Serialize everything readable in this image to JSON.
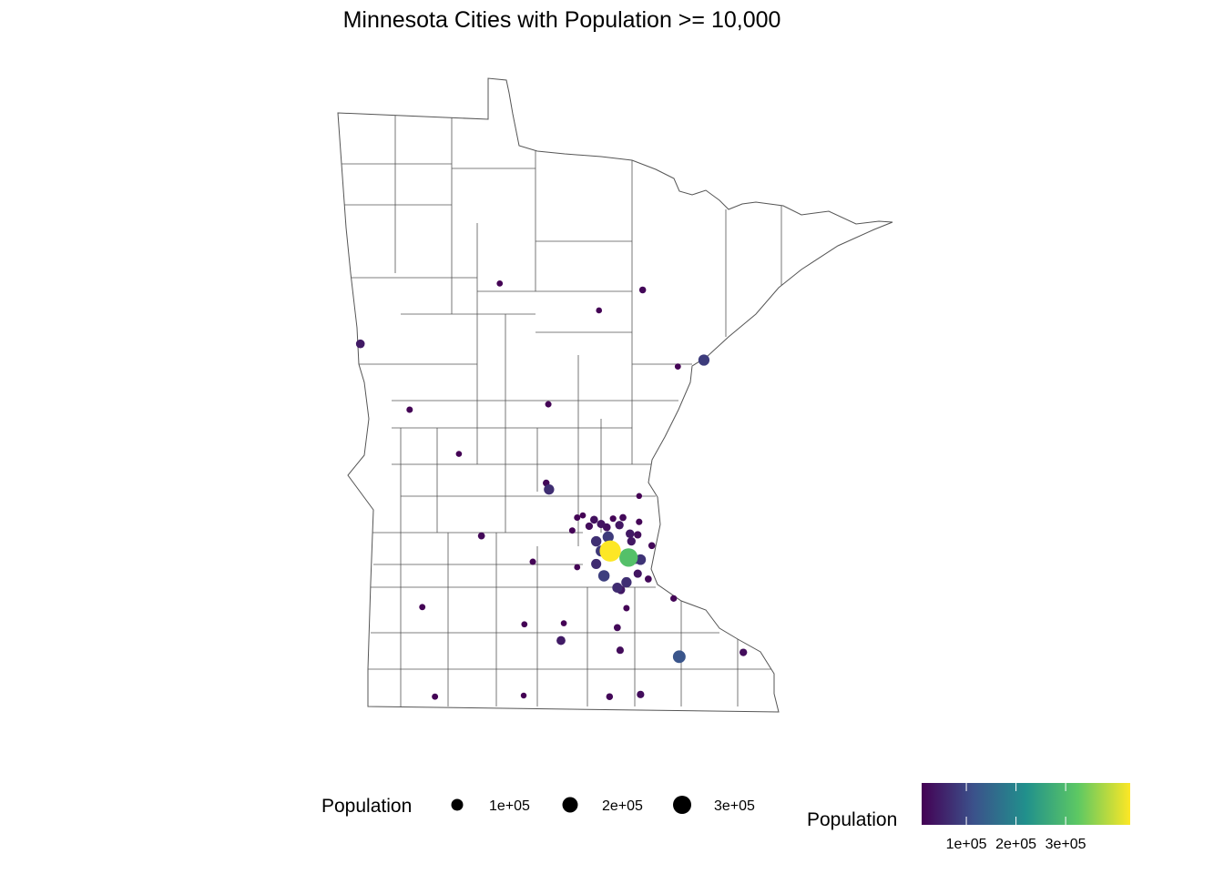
{
  "title": "Minnesota Cities with Population >= 10,000",
  "chart_data": {
    "type": "scatter",
    "subtype": "bubble map",
    "title": "Minnesota Cities with Population >= 10,000",
    "region": "Minnesota counties",
    "x": "longitude",
    "y": "latitude",
    "color_scale": {
      "name": "viridis",
      "title": "Population",
      "domain": [
        10000,
        430000
      ],
      "ticks": [
        100000,
        200000,
        300000
      ],
      "tick_labels": [
        "1e+05",
        "2e+05",
        "3e+05"
      ],
      "stops": [
        "#440154",
        "#3b528b",
        "#21908c",
        "#5dc863",
        "#fde725"
      ]
    },
    "size_legend": {
      "title": "Population",
      "values": [
        100000,
        200000,
        300000
      ],
      "labels": [
        "1e+05",
        "2e+05",
        "3e+05"
      ]
    },
    "points": [
      {
        "lon": -95.07,
        "lat": 47.47,
        "pop": 12000
      },
      {
        "lon": -93.04,
        "lat": 47.41,
        "pop": 18000
      },
      {
        "lon": -93.66,
        "lat": 47.22,
        "pop": 11000
      },
      {
        "lon": -97.05,
        "lat": 46.91,
        "pop": 42000
      },
      {
        "lon": -92.17,
        "lat": 46.76,
        "pop": 86000
      },
      {
        "lon": -92.54,
        "lat": 46.7,
        "pop": 12000
      },
      {
        "lon": -96.35,
        "lat": 46.3,
        "pop": 14000
      },
      {
        "lon": -94.38,
        "lat": 46.35,
        "pop": 14000
      },
      {
        "lon": -95.65,
        "lat": 45.89,
        "pop": 11000
      },
      {
        "lon": -94.37,
        "lat": 45.56,
        "pop": 68000
      },
      {
        "lon": -94.41,
        "lat": 45.62,
        "pop": 18000
      },
      {
        "lon": -93.09,
        "lat": 45.5,
        "pop": 10000
      },
      {
        "lon": -95.33,
        "lat": 45.13,
        "pop": 20000
      },
      {
        "lon": -94.6,
        "lat": 44.89,
        "pop": 14000
      },
      {
        "lon": -96.17,
        "lat": 44.47,
        "pop": 13000
      },
      {
        "lon": -94.72,
        "lat": 44.31,
        "pop": 12000
      },
      {
        "lon": -94.16,
        "lat": 44.32,
        "pop": 11000
      },
      {
        "lon": -94.2,
        "lat": 44.16,
        "pop": 44000
      },
      {
        "lon": -93.4,
        "lat": 44.28,
        "pop": 20000
      },
      {
        "lon": -93.36,
        "lat": 44.07,
        "pop": 24000
      },
      {
        "lon": -92.52,
        "lat": 44.01,
        "pop": 120000
      },
      {
        "lon": -91.61,
        "lat": 44.05,
        "pop": 26000
      },
      {
        "lon": -92.6,
        "lat": 44.55,
        "pop": 16000
      },
      {
        "lon": -95.99,
        "lat": 43.64,
        "pop": 13000
      },
      {
        "lon": -94.73,
        "lat": 43.65,
        "pop": 10000
      },
      {
        "lon": -93.51,
        "lat": 43.64,
        "pop": 18000
      },
      {
        "lon": -93.07,
        "lat": 43.66,
        "pop": 25000
      },
      {
        "lon": -93.97,
        "lat": 45.3,
        "pop": 14000
      },
      {
        "lon": -93.89,
        "lat": 45.32,
        "pop": 12000
      },
      {
        "lon": -93.73,
        "lat": 45.28,
        "pop": 30000
      },
      {
        "lon": -93.8,
        "lat": 45.22,
        "pop": 25000
      },
      {
        "lon": -94.04,
        "lat": 45.18,
        "pop": 14000
      },
      {
        "lon": -93.63,
        "lat": 45.24,
        "pop": 35000
      },
      {
        "lon": -93.55,
        "lat": 45.21,
        "pop": 30000
      },
      {
        "lon": -93.46,
        "lat": 45.29,
        "pop": 15000
      },
      {
        "lon": -93.32,
        "lat": 45.3,
        "pop": 20000
      },
      {
        "lon": -93.37,
        "lat": 45.23,
        "pop": 38000
      },
      {
        "lon": -93.22,
        "lat": 45.15,
        "pop": 40000
      },
      {
        "lon": -93.11,
        "lat": 45.14,
        "pop": 25000
      },
      {
        "lon": -93.09,
        "lat": 45.26,
        "pop": 15000
      },
      {
        "lon": -92.91,
        "lat": 45.04,
        "pop": 19000
      },
      {
        "lon": -92.96,
        "lat": 44.73,
        "pop": 20000
      },
      {
        "lon": -93.11,
        "lat": 44.78,
        "pop": 35000
      },
      {
        "lon": -93.27,
        "lat": 44.46,
        "pop": 14000
      },
      {
        "lon": -93.97,
        "lat": 44.84,
        "pop": 12000
      },
      {
        "lon": -93.2,
        "lat": 45.08,
        "pop": 38000
      },
      {
        "lon": -93.35,
        "lat": 44.63,
        "pop": 40000
      },
      {
        "lon": -93.53,
        "lat": 45.12,
        "pop": 85000
      },
      {
        "lon": -93.7,
        "lat": 45.08,
        "pop": 70000
      },
      {
        "lon": -93.63,
        "lat": 44.99,
        "pop": 80000
      },
      {
        "lon": -93.7,
        "lat": 44.87,
        "pop": 64000
      },
      {
        "lon": -93.59,
        "lat": 44.76,
        "pop": 90000
      },
      {
        "lon": -93.4,
        "lat": 44.65,
        "pop": 64000
      },
      {
        "lon": -93.27,
        "lat": 44.7,
        "pop": 68000
      },
      {
        "lon": -93.5,
        "lat": 44.99,
        "pop": 430000
      },
      {
        "lon": -93.24,
        "lat": 44.93,
        "pop": 310000
      },
      {
        "lon": -93.14,
        "lat": 44.91,
        "pop": 40000
      },
      {
        "lon": -93.07,
        "lat": 44.91,
        "pop": 75000
      }
    ]
  }
}
